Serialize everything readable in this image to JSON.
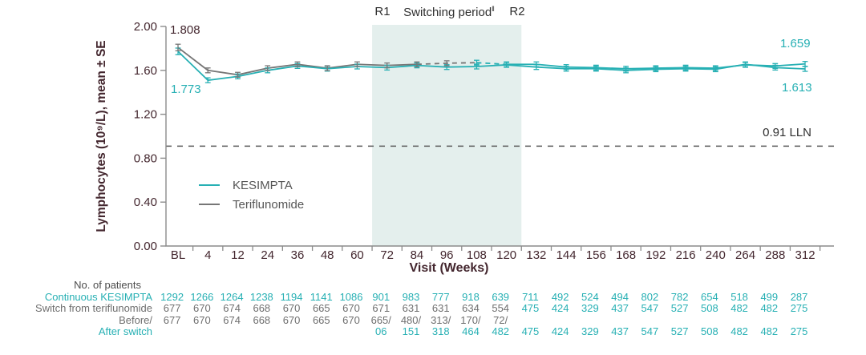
{
  "palette": {
    "teal": "#27b0b4",
    "terif": "#767676",
    "gray_text": "#6f6f6f",
    "maroon": "#43262e",
    "dark_text": "#4c4c4c",
    "axis": "#8c8c8c",
    "lln_line": "#5a5a5a",
    "shade": "#e4efed"
  },
  "annotations": {
    "r1": "R1",
    "switching_period": "Switching period",
    "switching_marker": "‖",
    "r2": "R2"
  },
  "chart_data": {
    "type": "line",
    "ylabel": "Lymphocytes (10⁹/L), mean ± SE",
    "xlabel": "Visit (Weeks)",
    "ylim": [
      0.0,
      2.0
    ],
    "yticks": [
      "0.00",
      "0.40",
      "0.80",
      "1.20",
      "1.60",
      "2.00"
    ],
    "categories": [
      "BL",
      "4",
      "12",
      "24",
      "36",
      "48",
      "60",
      "72",
      "84",
      "96",
      "108",
      "120",
      "132",
      "144",
      "156",
      "168",
      "192",
      "216",
      "240",
      "264",
      "288",
      "312"
    ],
    "grid": false,
    "legend_position": "left-middle",
    "switching_region": {
      "from_category_index": 6.5,
      "to_category_index": 11.5
    },
    "lln": {
      "value": 0.91,
      "label": "0.91 LLN"
    },
    "series": [
      {
        "name": "KESIMPTA",
        "color_key": "teal",
        "se": 0.022,
        "se_first": 0.03,
        "errbar_teal_from": 0,
        "values": [
          1.773,
          1.51,
          1.545,
          1.6,
          1.64,
          1.615,
          1.635,
          1.625,
          1.645,
          1.63,
          1.635,
          1.65,
          1.63,
          1.615,
          1.615,
          1.6,
          1.61,
          1.615,
          1.61,
          1.655,
          1.625,
          1.613
        ],
        "segments": [
          {
            "from": 0,
            "to": 21,
            "dash": false,
            "color_key": "teal"
          }
        ]
      },
      {
        "name": "Teriflunomide",
        "color_key": "terif",
        "se": 0.022,
        "se_first": 0.03,
        "errbar_teal_from": 10,
        "values": [
          1.808,
          1.6,
          1.56,
          1.62,
          1.655,
          1.62,
          1.655,
          1.645,
          1.655,
          1.665,
          1.67,
          1.655,
          1.655,
          1.63,
          1.625,
          1.615,
          1.62,
          1.625,
          1.62,
          1.65,
          1.64,
          1.659
        ],
        "segments": [
          {
            "from": 0,
            "to": 8,
            "dash": false,
            "color_key": "terif"
          },
          {
            "from": 8,
            "to": 10,
            "dash": true,
            "color_key": "terif"
          },
          {
            "from": 10,
            "to": 11,
            "dash": true,
            "color_key": "teal"
          },
          {
            "from": 11,
            "to": 21,
            "dash": false,
            "color_key": "teal"
          }
        ]
      }
    ],
    "point_labels": {
      "bl_teriflunomide": "1.808",
      "bl_kesimpta": "1.773",
      "week312_upper": "1.659",
      "week312_lower": "1.613"
    }
  },
  "legend": {
    "items": [
      {
        "label": "KESIMPTA",
        "color_key": "teal"
      },
      {
        "label": "Teriflunomide",
        "color_key": "terif"
      }
    ]
  },
  "patient_table": {
    "header_label": "No. of patients",
    "rows": [
      {
        "label": "Continuous KESIMPTA",
        "label_color": "teal",
        "cell_color": "teal",
        "values": [
          "1292",
          "1266",
          "1264",
          "1238",
          "1194",
          "1141",
          "1086",
          "901",
          "983",
          "777",
          "918",
          "639",
          "711",
          "492",
          "524",
          "494",
          "802",
          "782",
          "654",
          "518",
          "499",
          "287"
        ]
      },
      {
        "label": "Switch from teriflunomide",
        "label_color": "gray_text",
        "cell_color": [
          "gray_text",
          "gray_text",
          "gray_text",
          "gray_text",
          "gray_text",
          "gray_text",
          "gray_text",
          "gray_text",
          "gray_text",
          "gray_text",
          "gray_text",
          "gray_text",
          "teal",
          "teal",
          "teal",
          "teal",
          "teal",
          "teal",
          "teal",
          "teal",
          "teal",
          "teal"
        ],
        "values": [
          "677",
          "670",
          "674",
          "668",
          "670",
          "665",
          "670",
          "671",
          "631",
          "631",
          "634",
          "554",
          "475",
          "424",
          "329",
          "437",
          "547",
          "527",
          "508",
          "482",
          "482",
          "275"
        ]
      },
      {
        "label": "Before/",
        "label_color": "gray_text",
        "cell_color": "gray_text",
        "values": [
          "677",
          "670",
          "674",
          "668",
          "670",
          "665",
          "670",
          "665/",
          "480/",
          "313/",
          "170/",
          "72/",
          "",
          "",
          "",
          "",
          "",
          "",
          "",
          "",
          "",
          ""
        ]
      },
      {
        "label": "After switch",
        "label_color": "teal",
        "cell_color": "teal",
        "values": [
          "",
          "",
          "",
          "",
          "",
          "",
          "",
          "06",
          "151",
          "318",
          "464",
          "482",
          "475",
          "424",
          "329",
          "437",
          "547",
          "527",
          "508",
          "482",
          "482",
          "275"
        ]
      }
    ]
  }
}
